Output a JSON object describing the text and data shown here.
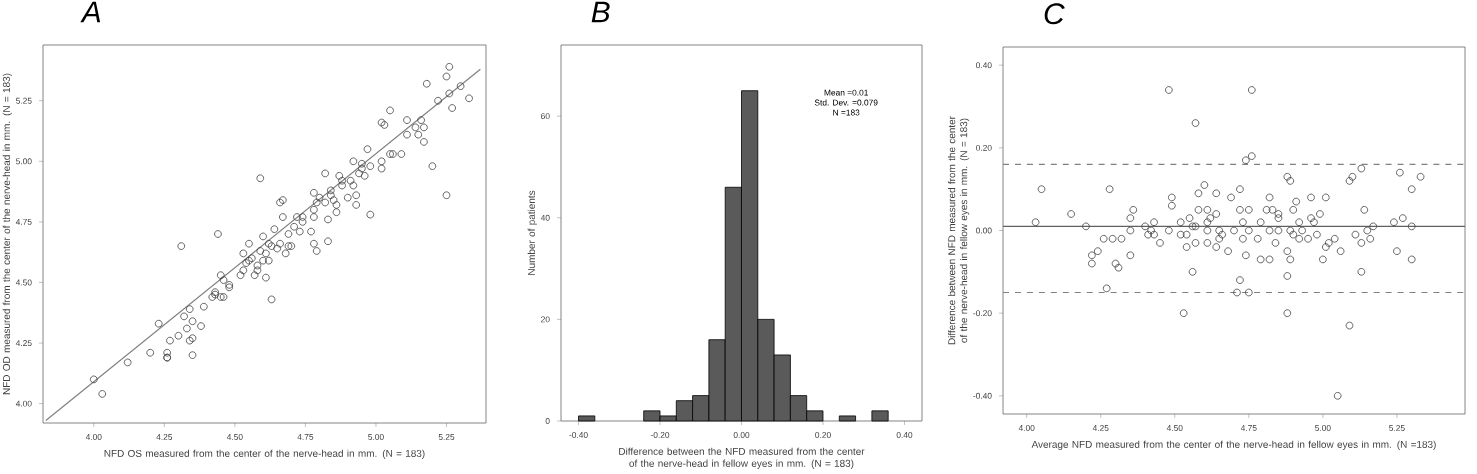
{
  "chart_data": [
    {
      "type": "scatter",
      "title": "A",
      "xlabel": "NFD OS measured from the center of the nerve-head in mm. (N = 183)",
      "ylabel": "NFD OD measured from the center of the nerve-head in mm. (N = 183)",
      "xlim": [
        3.82,
        5.39
      ],
      "ylim": [
        3.92,
        5.48
      ],
      "xticks": [
        {
          "value": 4,
          "label": "4.00"
        },
        {
          "value": 4.25,
          "label": "4.25"
        },
        {
          "value": 4.5,
          "label": "4.50"
        },
        {
          "value": 4.75,
          "label": "4.75"
        },
        {
          "value": 5,
          "label": "5.00"
        },
        {
          "value": 5.25,
          "label": "5.25"
        }
      ],
      "yticks": [
        {
          "value": 4,
          "label": "4.00"
        },
        {
          "value": 4.25,
          "label": "4.25"
        },
        {
          "value": 4.5,
          "label": "4.50"
        },
        {
          "value": 4.75,
          "label": "4.75"
        },
        {
          "value": 5,
          "label": "5.00"
        },
        {
          "value": 5.25,
          "label": "5.25"
        }
      ],
      "series": [
        {
          "type": "scatter",
          "marker": "circle",
          "color": "#404040",
          "x": [
            4.0,
            4.03,
            4.12,
            4.2,
            4.23,
            4.26,
            4.26,
            4.26,
            4.27,
            4.3,
            4.31,
            4.32,
            4.33,
            4.34,
            4.34,
            4.35,
            4.35,
            4.35,
            4.38,
            4.39,
            4.42,
            4.43,
            4.43,
            4.45,
            4.44,
            4.45,
            4.46,
            4.46,
            4.48,
            4.48,
            4.52,
            4.53,
            4.53,
            4.54,
            4.55,
            4.55,
            4.56,
            4.57,
            4.58,
            4.58,
            4.59,
            4.59,
            4.6,
            4.6,
            4.61,
            4.61,
            4.62,
            4.63,
            4.62,
            4.63,
            4.64,
            4.65,
            4.66,
            4.67,
            4.66,
            4.67,
            4.68,
            4.69,
            4.7,
            4.69,
            4.71,
            4.72,
            4.73,
            4.74,
            4.74,
            4.77,
            4.78,
            4.78,
            4.78,
            4.78,
            4.79,
            4.79,
            4.8,
            4.82,
            4.82,
            4.83,
            4.83,
            4.84,
            4.84,
            4.85,
            4.86,
            4.86,
            4.87,
            4.88,
            4.88,
            4.9,
            4.91,
            4.92,
            4.92,
            4.93,
            4.93,
            4.94,
            4.95,
            4.95,
            4.96,
            4.97,
            4.98,
            4.98,
            5.02,
            5.02,
            5.02,
            5.03,
            5.05,
            5.05,
            5.06,
            5.09,
            5.11,
            5.11,
            5.14,
            5.15,
            5.16,
            5.17,
            5.17,
            5.18,
            5.2,
            5.22,
            5.25,
            5.25,
            5.26,
            5.26,
            5.27,
            5.3,
            5.33
          ],
          "values": [
            4.1,
            4.04,
            4.17,
            4.21,
            4.33,
            4.19,
            4.19,
            4.21,
            4.26,
            4.28,
            4.65,
            4.36,
            4.31,
            4.39,
            4.26,
            4.34,
            4.2,
            4.27,
            4.32,
            4.4,
            4.44,
            4.45,
            4.46,
            4.44,
            4.7,
            4.53,
            4.51,
            4.44,
            4.48,
            4.49,
            4.53,
            4.55,
            4.62,
            4.58,
            4.59,
            4.66,
            4.6,
            4.53,
            4.57,
            4.55,
            4.63,
            4.93,
            4.69,
            4.59,
            4.62,
            4.52,
            4.59,
            4.43,
            4.66,
            4.65,
            4.72,
            4.64,
            4.83,
            4.84,
            4.66,
            4.77,
            4.62,
            4.65,
            4.65,
            4.7,
            4.73,
            4.77,
            4.71,
            4.77,
            4.75,
            4.71,
            4.87,
            4.8,
            4.77,
            4.66,
            4.63,
            4.83,
            4.85,
            4.95,
            4.83,
            4.67,
            4.76,
            4.86,
            4.88,
            4.84,
            4.82,
            4.79,
            4.94,
            4.92,
            4.9,
            4.85,
            4.92,
            5.0,
            4.9,
            4.86,
            4.82,
            4.95,
            4.97,
            4.99,
            4.94,
            5.05,
            4.78,
            4.98,
            5.0,
            4.97,
            5.16,
            5.15,
            5.21,
            5.03,
            5.03,
            5.03,
            5.17,
            5.11,
            5.14,
            5.11,
            5.17,
            5.14,
            5.08,
            5.32,
            4.98,
            5.25,
            4.86,
            5.35,
            5.28,
            5.39,
            5.22,
            5.31,
            5.26
          ]
        },
        {
          "type": "line",
          "color": "#808080",
          "x": [
            3.83,
            5.37
          ],
          "values": [
            3.93,
            5.38
          ]
        }
      ]
    },
    {
      "type": "histogram",
      "title": "B",
      "xlabel": "Difference between the NFD measured from the center of the nerve-head in fellow eyes in mm. (N = 183)",
      "ylabel": "Number of patients",
      "xlim": [
        -0.443,
        0.443
      ],
      "ylim": [
        0,
        74
      ],
      "xticks": [
        {
          "value": -0.4,
          "label": "-0.40"
        },
        {
          "value": -0.2,
          "label": "-0.20"
        },
        {
          "value": 0,
          "label": "0.00"
        },
        {
          "value": 0.2,
          "label": "0.20"
        },
        {
          "value": 0.4,
          "label": "0.40"
        }
      ],
      "yticks": [
        0,
        20,
        40,
        60
      ],
      "color": "#5a5a5a",
      "bins": [
        -0.4,
        -0.36,
        -0.32,
        -0.28,
        -0.24,
        -0.2,
        -0.16,
        -0.12,
        -0.08,
        -0.04,
        0.0,
        0.04,
        0.08,
        0.12,
        0.16,
        0.2,
        0.24,
        0.28,
        0.32,
        0.36
      ],
      "values": [
        1,
        0,
        0,
        0,
        2,
        1,
        4,
        5,
        16,
        46,
        65,
        20,
        13,
        5,
        2,
        0,
        1,
        0,
        2
      ],
      "annotations": [
        "Mean =0.01",
        "Std. Dev. =0.079",
        "N =183"
      ]
    },
    {
      "type": "scatter",
      "title": "C",
      "xlabel": "Average NFD measured from the center of the nerve-head in fellow eyes in mm. (N =183)",
      "ylabel": "Difference between NFD measured from the center of the nerve-head in fellow eyes in mm. (N = 183)",
      "xlim": [
        3.92,
        5.48
      ],
      "ylim": [
        -0.444,
        0.444
      ],
      "xticks": [
        {
          "value": 4,
          "label": "4.00"
        },
        {
          "value": 4.25,
          "label": "4.25"
        },
        {
          "value": 4.5,
          "label": "4.50"
        },
        {
          "value": 4.75,
          "label": "4.75"
        },
        {
          "value": 5,
          "label": "5.00"
        },
        {
          "value": 5.25,
          "label": "5.25"
        }
      ],
      "yticks": [
        {
          "value": -0.4,
          "label": "-0.40"
        },
        {
          "value": -0.2,
          "label": "-0.20"
        },
        {
          "value": 0,
          "label": "0.00"
        },
        {
          "value": 0.2,
          "label": "0.20"
        },
        {
          "value": 0.4,
          "label": "0.40"
        }
      ],
      "marker": "circle",
      "ref_lines": [
        {
          "axis": "y",
          "value": 0.01,
          "color": "#606060",
          "line_style": "solid"
        },
        {
          "axis": "y",
          "value": 0.16,
          "color": "#808080",
          "line_style": "dashed"
        },
        {
          "axis": "y",
          "value": -0.15,
          "color": "#808080",
          "line_style": "dashed"
        }
      ],
      "series": [
        {
          "type": "scatter",
          "color": "#404040",
          "x": [
            4.03,
            4.05,
            4.15,
            4.2,
            4.22,
            4.22,
            4.24,
            4.26,
            4.27,
            4.28,
            4.29,
            4.3,
            4.31,
            4.32,
            4.35,
            4.35,
            4.35,
            4.36,
            4.4,
            4.41,
            4.42,
            4.43,
            4.43,
            4.45,
            4.48,
            4.48,
            4.49,
            4.49,
            4.52,
            4.52,
            4.53,
            4.54,
            4.54,
            4.55,
            4.56,
            4.56,
            4.57,
            4.57,
            4.57,
            4.58,
            4.58,
            4.6,
            4.61,
            4.61,
            4.61,
            4.61,
            4.62,
            4.64,
            4.64,
            4.64,
            4.65,
            4.65,
            4.66,
            4.68,
            4.69,
            4.7,
            4.71,
            4.72,
            4.72,
            4.72,
            4.73,
            4.73,
            4.74,
            4.74,
            4.75,
            4.75,
            4.75,
            4.76,
            4.76,
            4.78,
            4.79,
            4.79,
            4.81,
            4.82,
            4.82,
            4.82,
            4.83,
            4.84,
            4.85,
            4.85,
            4.85,
            4.88,
            4.88,
            4.88,
            4.88,
            4.89,
            4.89,
            4.89,
            4.9,
            4.9,
            4.91,
            4.92,
            4.92,
            4.93,
            4.95,
            4.96,
            4.96,
            4.97,
            4.98,
            4.99,
            5.0,
            5.01,
            5.01,
            5.02,
            5.04,
            5.05,
            5.06,
            5.09,
            5.09,
            5.1,
            5.11,
            5.13,
            5.13,
            5.13,
            5.14,
            5.15,
            5.16,
            5.17,
            5.24,
            5.25,
            5.26,
            5.27,
            5.3,
            5.3,
            5.3,
            5.33
          ],
          "values": [
            0.02,
            0.1,
            0.04,
            0.01,
            -0.06,
            -0.08,
            -0.05,
            -0.02,
            -0.14,
            0.1,
            -0.02,
            -0.08,
            -0.09,
            -0.02,
            0.03,
            0.0,
            -0.06,
            0.05,
            0.01,
            -0.01,
            0.0,
            0.02,
            -0.01,
            -0.03,
            0.34,
            0.0,
            0.06,
            0.08,
            -0.01,
            0.02,
            -0.2,
            -0.01,
            -0.04,
            0.03,
            0.01,
            -0.1,
            0.01,
            -0.03,
            0.26,
            0.05,
            0.09,
            0.11,
            0.05,
            0.02,
            -0.03,
            0.0,
            0.03,
            -0.04,
            0.09,
            0.04,
            0.0,
            -0.02,
            -0.01,
            -0.05,
            0.08,
            0.0,
            -0.15,
            0.05,
            -0.12,
            0.1,
            0.02,
            -0.02,
            -0.06,
            0.17,
            0.05,
            -0.15,
            0.0,
            0.18,
            0.34,
            -0.02,
            0.02,
            -0.07,
            0.05,
            0.08,
            -0.07,
            0.0,
            0.05,
            -0.03,
            0.03,
            0.0,
            0.04,
            -0.05,
            -0.11,
            0.13,
            -0.2,
            0.12,
            0.0,
            -0.07,
            0.05,
            -0.01,
            0.07,
            -0.02,
            0.02,
            0.0,
            -0.02,
            0.08,
            0.03,
            0.02,
            -0.01,
            0.04,
            -0.07,
            0.08,
            -0.04,
            -0.03,
            -0.02,
            -0.4,
            -0.05,
            0.12,
            -0.23,
            0.13,
            -0.01,
            -0.1,
            0.15,
            -0.03,
            0.05,
            0.0,
            -0.02,
            0.01,
            0.02,
            -0.05,
            0.14,
            0.03,
            -0.07,
            0.1,
            0.01,
            0.13
          ]
        }
      ]
    }
  ]
}
